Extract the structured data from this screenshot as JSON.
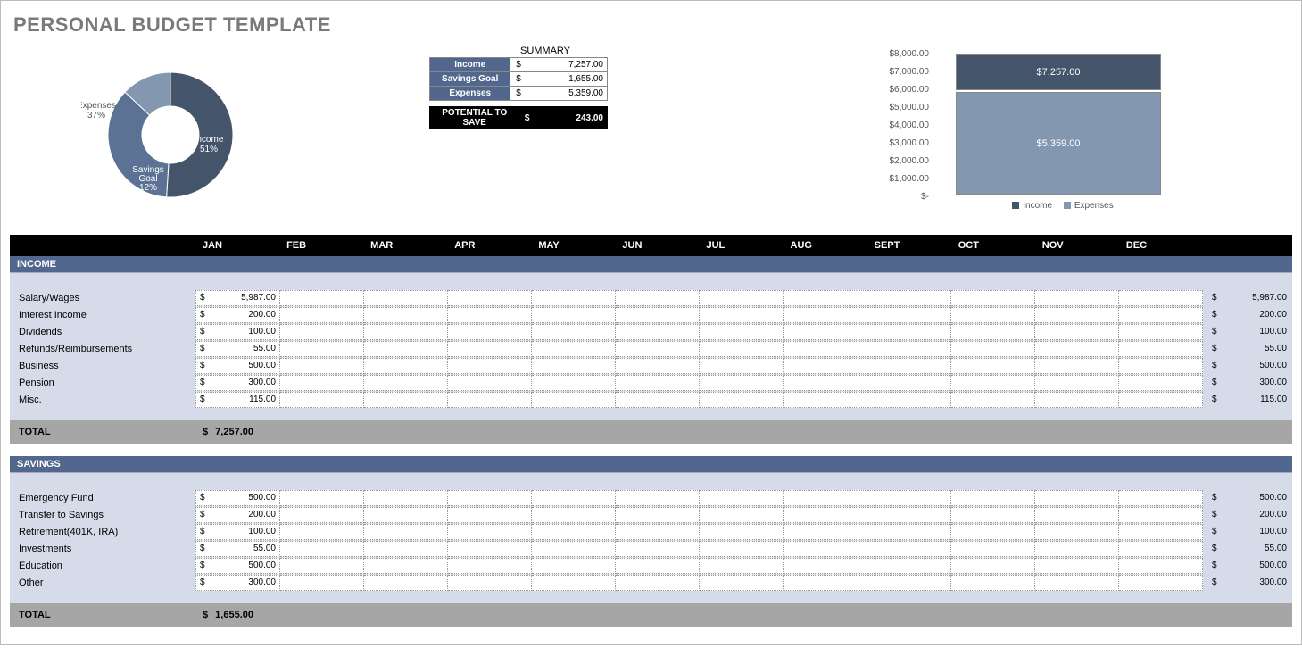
{
  "title": "PERSONAL BUDGET TEMPLATE",
  "colors": {
    "income": "#44546a",
    "savings": "#5b7294",
    "expenses": "#8497b0",
    "section_hdr": "#52678e",
    "section_body": "#d6dbe9",
    "total_row": "#a6a6a6",
    "months_bg": "#000000"
  },
  "donut": {
    "slices": [
      {
        "name": "Income",
        "pct": 51,
        "label_line1": "Income",
        "label_line2": "51%",
        "color": "#44546a"
      },
      {
        "name": "Savings Goal",
        "pct": 12,
        "label_line1": "Savings",
        "label_line2": "Goal",
        "label_line3": "12%",
        "color": "#5b7294"
      },
      {
        "name": "Expenses",
        "pct": 37,
        "label_line1": "Expenses",
        "label_line2": "37%",
        "color": "#8497b0"
      }
    ],
    "outer_r": 70,
    "inner_r": 32
  },
  "summary": {
    "title": "SUMMARY",
    "rows": [
      {
        "label": "Income",
        "cur": "$",
        "value": "7,257.00"
      },
      {
        "label": "Savings Goal",
        "cur": "$",
        "value": "1,655.00"
      },
      {
        "label": "Expenses",
        "cur": "$",
        "value": "5,359.00"
      }
    ],
    "potential": {
      "label": "POTENTIAL TO SAVE",
      "cur": "$",
      "value": "243.00"
    }
  },
  "y_axis": [
    "$8,000.00",
    "$7,000.00",
    "$6,000.00",
    "$5,000.00",
    "$4,000.00",
    "$3,000.00",
    "$2,000.00",
    "$1,000.00",
    "$-"
  ],
  "bars": {
    "income": {
      "label": "$7,257.00",
      "color": "#44546a"
    },
    "expenses": {
      "label": "$5,359.00",
      "color": "#8497b0"
    },
    "legend": [
      {
        "swatch": "#44546a",
        "text": "Income"
      },
      {
        "swatch": "#8497b0",
        "text": "Expenses"
      }
    ]
  },
  "months": [
    "JAN",
    "FEB",
    "MAR",
    "APR",
    "MAY",
    "JUN",
    "JUL",
    "AUG",
    "SEPT",
    "OCT",
    "NOV",
    "DEC"
  ],
  "sections": [
    {
      "name": "INCOME",
      "rows": [
        {
          "label": "Salary/Wages",
          "jan": "5,987.00",
          "total": "5,987.00"
        },
        {
          "label": "Interest Income",
          "jan": "200.00",
          "total": "200.00"
        },
        {
          "label": "Dividends",
          "jan": "100.00",
          "total": "100.00"
        },
        {
          "label": "Refunds/Reimbursements",
          "jan": "55.00",
          "total": "55.00"
        },
        {
          "label": "Business",
          "jan": "500.00",
          "total": "500.00"
        },
        {
          "label": "Pension",
          "jan": "300.00",
          "total": "300.00"
        },
        {
          "label": "Misc.",
          "jan": "115.00",
          "total": "115.00"
        }
      ],
      "total": {
        "label": "TOTAL",
        "cur": "$",
        "value": "7,257.00"
      }
    },
    {
      "name": "SAVINGS",
      "rows": [
        {
          "label": "Emergency Fund",
          "jan": "500.00",
          "total": "500.00"
        },
        {
          "label": "Transfer to Savings",
          "jan": "200.00",
          "total": "200.00"
        },
        {
          "label": "Retirement(401K, IRA)",
          "jan": "100.00",
          "total": "100.00"
        },
        {
          "label": "Investments",
          "jan": "55.00",
          "total": "55.00"
        },
        {
          "label": "Education",
          "jan": "500.00",
          "total": "500.00"
        },
        {
          "label": "Other",
          "jan": "300.00",
          "total": "300.00"
        }
      ],
      "total": {
        "label": "TOTAL",
        "cur": "$",
        "value": "1,655.00"
      }
    }
  ]
}
